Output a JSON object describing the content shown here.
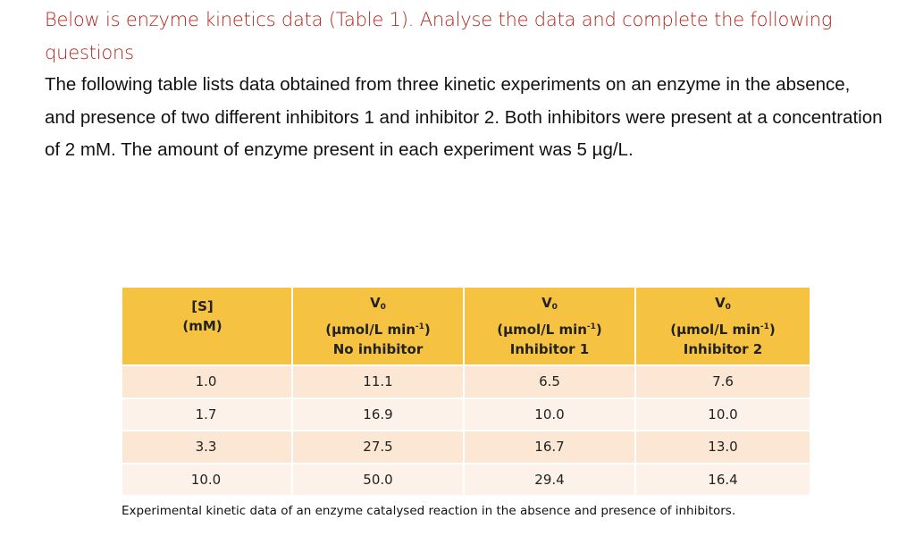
{
  "heading": "Below is enzyme kinetics data (Table 1). Analyse the data and complete the following questions",
  "paragraph": "The following table lists data obtained from three kinetic experiments on an enzyme in the absence, and presence of two different inhibitors 1 and inhibitor 2. Both inhibitors were present at a concentration of 2 mM. The amount of enzyme present in each experiment was 5 µg/L.",
  "table": {
    "header_colors": {
      "header_bg": "#f5c242",
      "row_odd": "#fbe7d3",
      "row_even": "#fdf2e9"
    },
    "columns": [
      {
        "line1": "[S]",
        "line2": "(mM)",
        "line3": ""
      },
      {
        "line1": "V",
        "line1_sub": "0",
        "line2_pre": "(µmol/L min",
        "line2_sup": "-1",
        "line2_post": ")",
        "line3": "No inhibitor"
      },
      {
        "line1": "V",
        "line1_sub": "0",
        "line2_pre": "(µmol/L min",
        "line2_sup": "-1",
        "line2_post": ")",
        "line3": "Inhibitor 1"
      },
      {
        "line1": "V",
        "line1_sub": "0",
        "line2_pre": "(µmol/L min",
        "line2_sup": "-1",
        "line2_post": ")",
        "line3": "Inhibitor 2"
      }
    ],
    "rows": [
      [
        "1.0",
        "11.1",
        "6.5",
        "7.6"
      ],
      [
        "1.7",
        "16.9",
        "10.0",
        "10.0"
      ],
      [
        "3.3",
        "27.5",
        "16.7",
        "13.0"
      ],
      [
        "10.0",
        "50.0",
        "29.4",
        "16.4"
      ]
    ]
  },
  "caption": "Experimental kinetic data of an enzyme catalysed reaction in the absence and presence of inhibitors."
}
